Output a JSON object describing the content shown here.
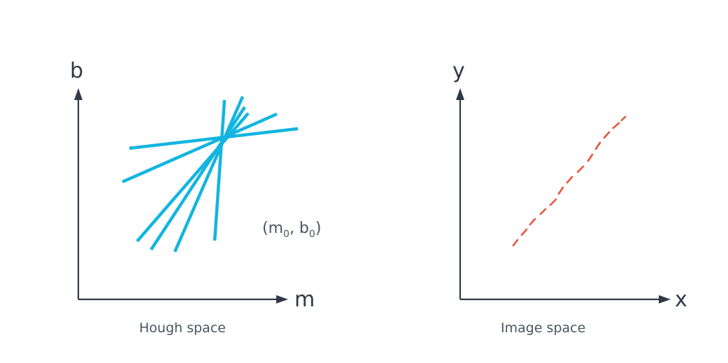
{
  "hough_panel": {
    "y_axis_label": "b",
    "x_axis_label": "m",
    "caption": "Hough space",
    "point_label": {
      "open": "(m",
      "sub1": "0",
      "mid": ", b",
      "sub2": "0",
      "close": ")"
    },
    "line_color": "#13b5e0",
    "line_count": 7
  },
  "image_panel": {
    "y_axis_label": "y",
    "x_axis_label": "x",
    "caption": "Image space",
    "dash_color": "#e8543c"
  },
  "axis_color": "#2f3a46"
}
